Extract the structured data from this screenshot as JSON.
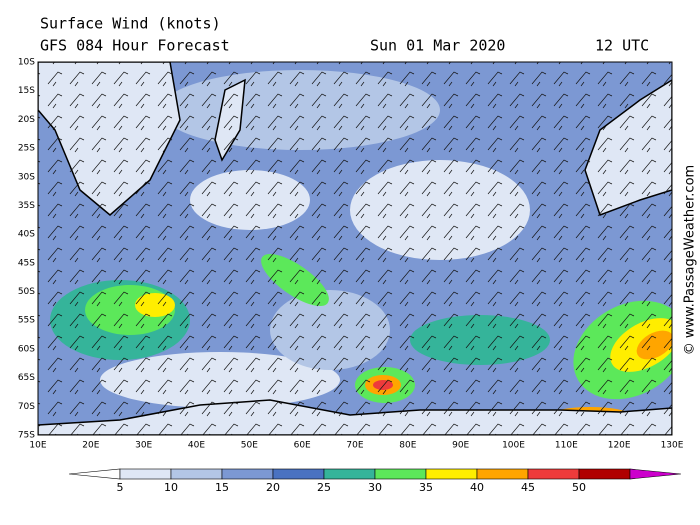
{
  "header": {
    "title": "Surface Wind (knots)",
    "model": "GFS 084 Hour Forecast",
    "date": "Sun 01 Mar 2020",
    "time": "12 UTC"
  },
  "lat_labels": [
    "10S",
    "15S",
    "20S",
    "25S",
    "30S",
    "35S",
    "40S",
    "45S",
    "50S",
    "55S",
    "60S",
    "65S",
    "70S",
    "75S"
  ],
  "lon_labels": [
    "10E",
    "20E",
    "30E",
    "40E",
    "50E",
    "60E",
    "70E",
    "80E",
    "90E",
    "100E",
    "110E",
    "120E",
    "130E"
  ],
  "legend": {
    "labels": [
      5,
      10,
      15,
      20,
      25,
      30,
      35,
      40,
      45,
      50
    ],
    "colors": [
      "#ffffff",
      "#dfe7f5",
      "#b3c6e6",
      "#7c98d3",
      "#4a72c1",
      "#35b49a",
      "#5ce85a",
      "#ffee00",
      "#ffa500",
      "#ee3b3b",
      "#b00000",
      "#cc00cc"
    ]
  },
  "copyright": "© www.PassageWeather.com"
}
